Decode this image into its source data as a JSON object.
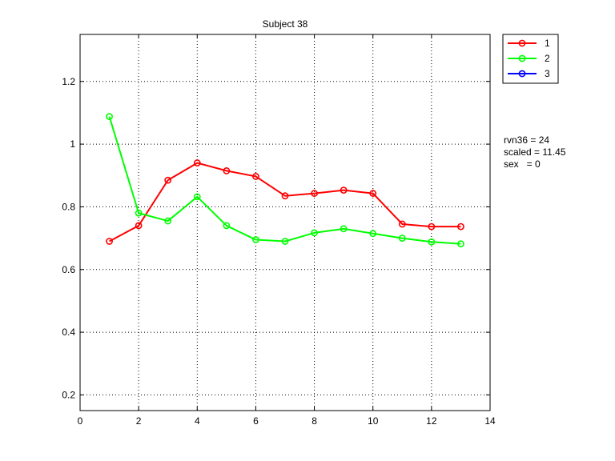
{
  "chart_data": {
    "type": "line",
    "title": "Subject 38",
    "xlabel": "",
    "ylabel": "",
    "xlim": [
      0,
      14
    ],
    "ylim": [
      0.15,
      1.35
    ],
    "xticks": [
      0,
      2,
      4,
      6,
      8,
      10,
      12,
      14
    ],
    "yticks": [
      0.2,
      0.4,
      0.6,
      0.8,
      1,
      1.2
    ],
    "xtick_labels": [
      "0",
      "2",
      "4",
      "6",
      "8",
      "10",
      "12",
      "14"
    ],
    "ytick_labels": [
      "0.2",
      "0.4",
      "0.6",
      "0.8",
      "1",
      "1.2"
    ],
    "grid": true,
    "legend": {
      "placement": "outside-top-right"
    },
    "series": [
      {
        "name": "1",
        "color": "#ff0000",
        "marker": "circle",
        "x": [
          1,
          2,
          3,
          4,
          5,
          6,
          7,
          8,
          9,
          10,
          11,
          12,
          13
        ],
        "y": [
          0.69,
          0.74,
          0.885,
          0.94,
          0.915,
          0.897,
          0.835,
          0.843,
          0.853,
          0.843,
          0.745,
          0.737,
          0.737
        ]
      },
      {
        "name": "2",
        "color": "#00ff00",
        "marker": "circle",
        "x": [
          1,
          2,
          3,
          4,
          5,
          6,
          7,
          8,
          9,
          10,
          11,
          12,
          13
        ],
        "y": [
          1.088,
          0.78,
          0.755,
          0.832,
          0.74,
          0.695,
          0.69,
          0.717,
          0.73,
          0.715,
          0.7,
          0.688,
          0.682
        ]
      },
      {
        "name": "3",
        "color": "#0000ff",
        "marker": "circle",
        "x": [],
        "y": []
      }
    ],
    "annotations": [
      "rvn36 = 24",
      "scaled = 11.45",
      "sex   = 0"
    ]
  }
}
